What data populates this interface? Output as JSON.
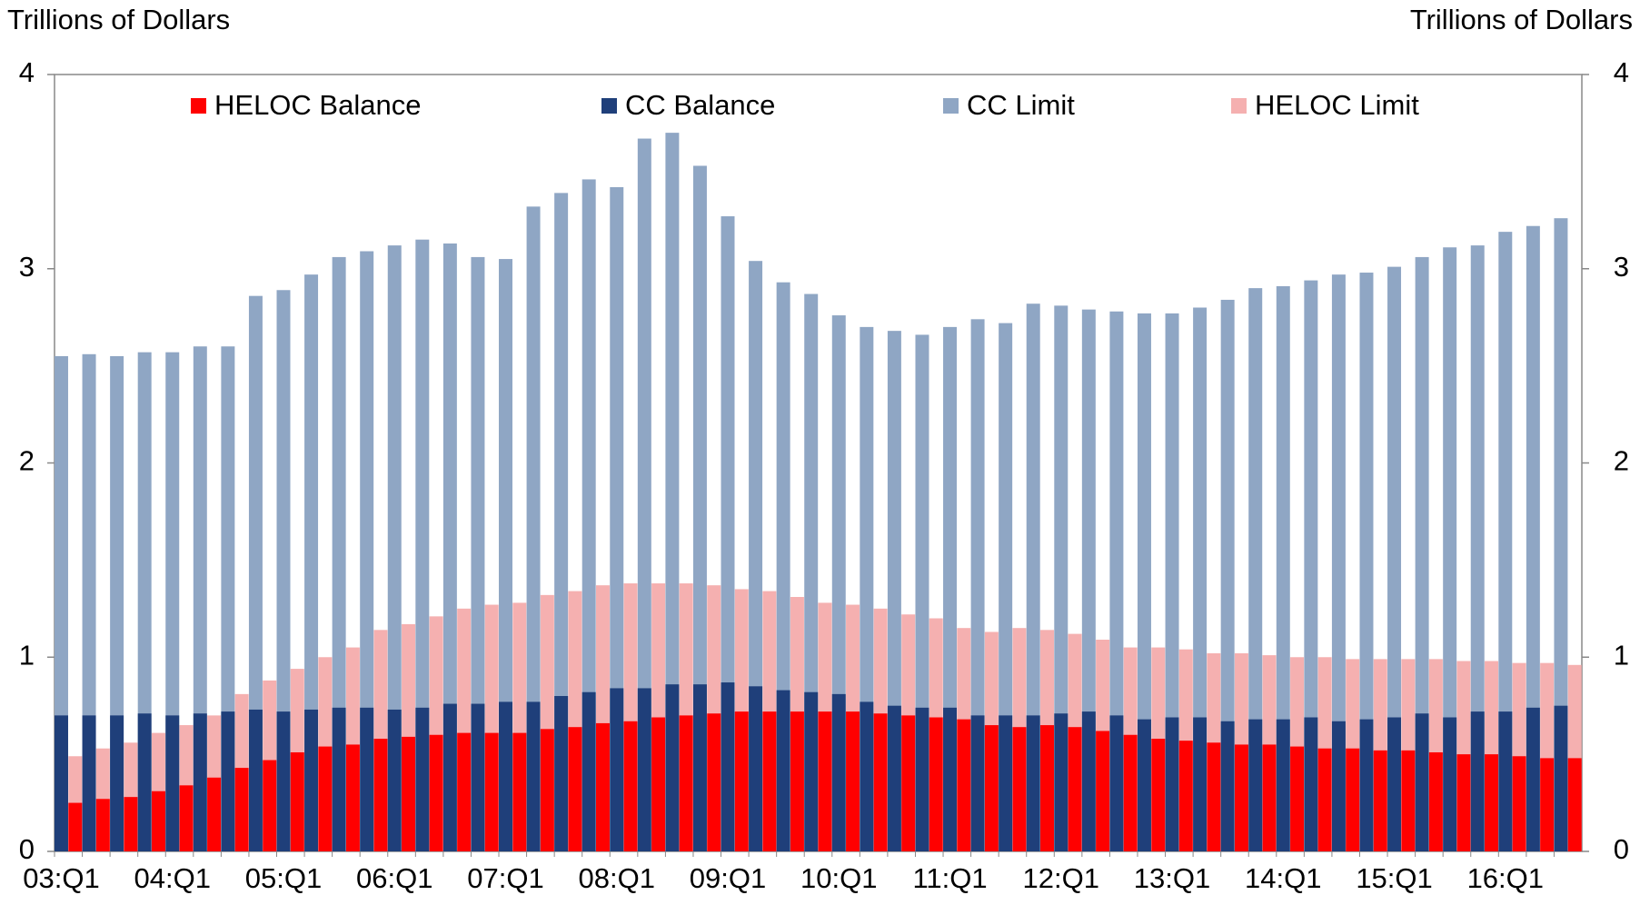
{
  "chart_data": {
    "type": "bar",
    "y_label": "Trillions of Dollars",
    "y2_label": "Trillions of Dollars",
    "categories": [
      "03:Q1",
      null,
      null,
      null,
      "04:Q1",
      null,
      null,
      null,
      "05:Q1",
      null,
      null,
      null,
      "06:Q1",
      null,
      null,
      null,
      "07:Q1",
      null,
      null,
      null,
      "08:Q1",
      null,
      null,
      null,
      "09:Q1",
      null,
      null,
      null,
      "10:Q1",
      null,
      null,
      null,
      "11:Q1",
      null,
      null,
      null,
      "12:Q1",
      null,
      null,
      null,
      "13:Q1",
      null,
      null,
      null,
      "14:Q1",
      null,
      null,
      null,
      "15:Q1",
      null,
      null,
      null,
      "16:Q1",
      null,
      null
    ],
    "series": [
      {
        "name": "HELOC Balance",
        "color": "#ff0000",
        "values": [
          0.25,
          0.27,
          0.28,
          0.31,
          0.34,
          0.38,
          0.43,
          0.47,
          0.51,
          0.54,
          0.55,
          0.58,
          0.59,
          0.6,
          0.61,
          0.61,
          0.61,
          0.63,
          0.64,
          0.66,
          0.67,
          0.69,
          0.7,
          0.71,
          0.72,
          0.72,
          0.72,
          0.72,
          0.72,
          0.71,
          0.7,
          0.69,
          0.68,
          0.65,
          0.64,
          0.65,
          0.64,
          0.62,
          0.6,
          0.58,
          0.57,
          0.56,
          0.55,
          0.55,
          0.54,
          0.53,
          0.53,
          0.52,
          0.52,
          0.51,
          0.5,
          0.5,
          0.49,
          0.48,
          0.48
        ]
      },
      {
        "name": "CC Balance",
        "color": "#1f3f7a",
        "values": [
          0.7,
          0.7,
          0.7,
          0.71,
          0.7,
          0.71,
          0.72,
          0.73,
          0.72,
          0.73,
          0.74,
          0.74,
          0.73,
          0.74,
          0.76,
          0.76,
          0.77,
          0.77,
          0.8,
          0.82,
          0.84,
          0.84,
          0.86,
          0.86,
          0.87,
          0.85,
          0.83,
          0.82,
          0.81,
          0.77,
          0.75,
          0.74,
          0.74,
          0.7,
          0.7,
          0.7,
          0.71,
          0.72,
          0.7,
          0.68,
          0.69,
          0.69,
          0.67,
          0.68,
          0.68,
          0.69,
          0.67,
          0.68,
          0.69,
          0.71,
          0.69,
          0.72,
          0.72,
          0.74,
          0.75
        ]
      },
      {
        "name": "CC Limit",
        "color": "#8fa6c4",
        "values": [
          2.55,
          2.56,
          2.55,
          2.57,
          2.57,
          2.6,
          2.6,
          2.86,
          2.89,
          2.97,
          3.06,
          3.09,
          3.12,
          3.15,
          3.13,
          3.06,
          3.05,
          3.32,
          3.39,
          3.46,
          3.42,
          3.67,
          3.7,
          3.53,
          3.27,
          3.04,
          2.93,
          2.87,
          2.76,
          2.7,
          2.68,
          2.66,
          2.7,
          2.74,
          2.72,
          2.82,
          2.81,
          2.79,
          2.78,
          2.77,
          2.77,
          2.8,
          2.84,
          2.9,
          2.91,
          2.94,
          2.97,
          2.98,
          3.01,
          3.06,
          3.11,
          3.12,
          3.19,
          3.22,
          3.26
        ]
      },
      {
        "name": "HELOC Limit",
        "color": "#f5b0b0",
        "values": [
          0.49,
          0.53,
          0.56,
          0.61,
          0.65,
          0.7,
          0.81,
          0.88,
          0.94,
          1.0,
          1.05,
          1.14,
          1.17,
          1.21,
          1.25,
          1.27,
          1.28,
          1.32,
          1.34,
          1.37,
          1.38,
          1.38,
          1.38,
          1.37,
          1.35,
          1.34,
          1.31,
          1.28,
          1.27,
          1.25,
          1.22,
          1.2,
          1.15,
          1.13,
          1.15,
          1.14,
          1.12,
          1.09,
          1.05,
          1.05,
          1.04,
          1.02,
          1.02,
          1.01,
          1.0,
          1.0,
          0.99,
          0.99,
          0.99,
          0.99,
          0.98,
          0.98,
          0.97,
          0.97,
          0.96
        ]
      }
    ],
    "ylim": [
      0,
      4
    ],
    "yticks": [
      0,
      1,
      2,
      3,
      4
    ],
    "y2lim": [
      0,
      4
    ],
    "y2ticks": [
      0,
      1,
      2,
      3,
      4
    ],
    "grid": false
  }
}
